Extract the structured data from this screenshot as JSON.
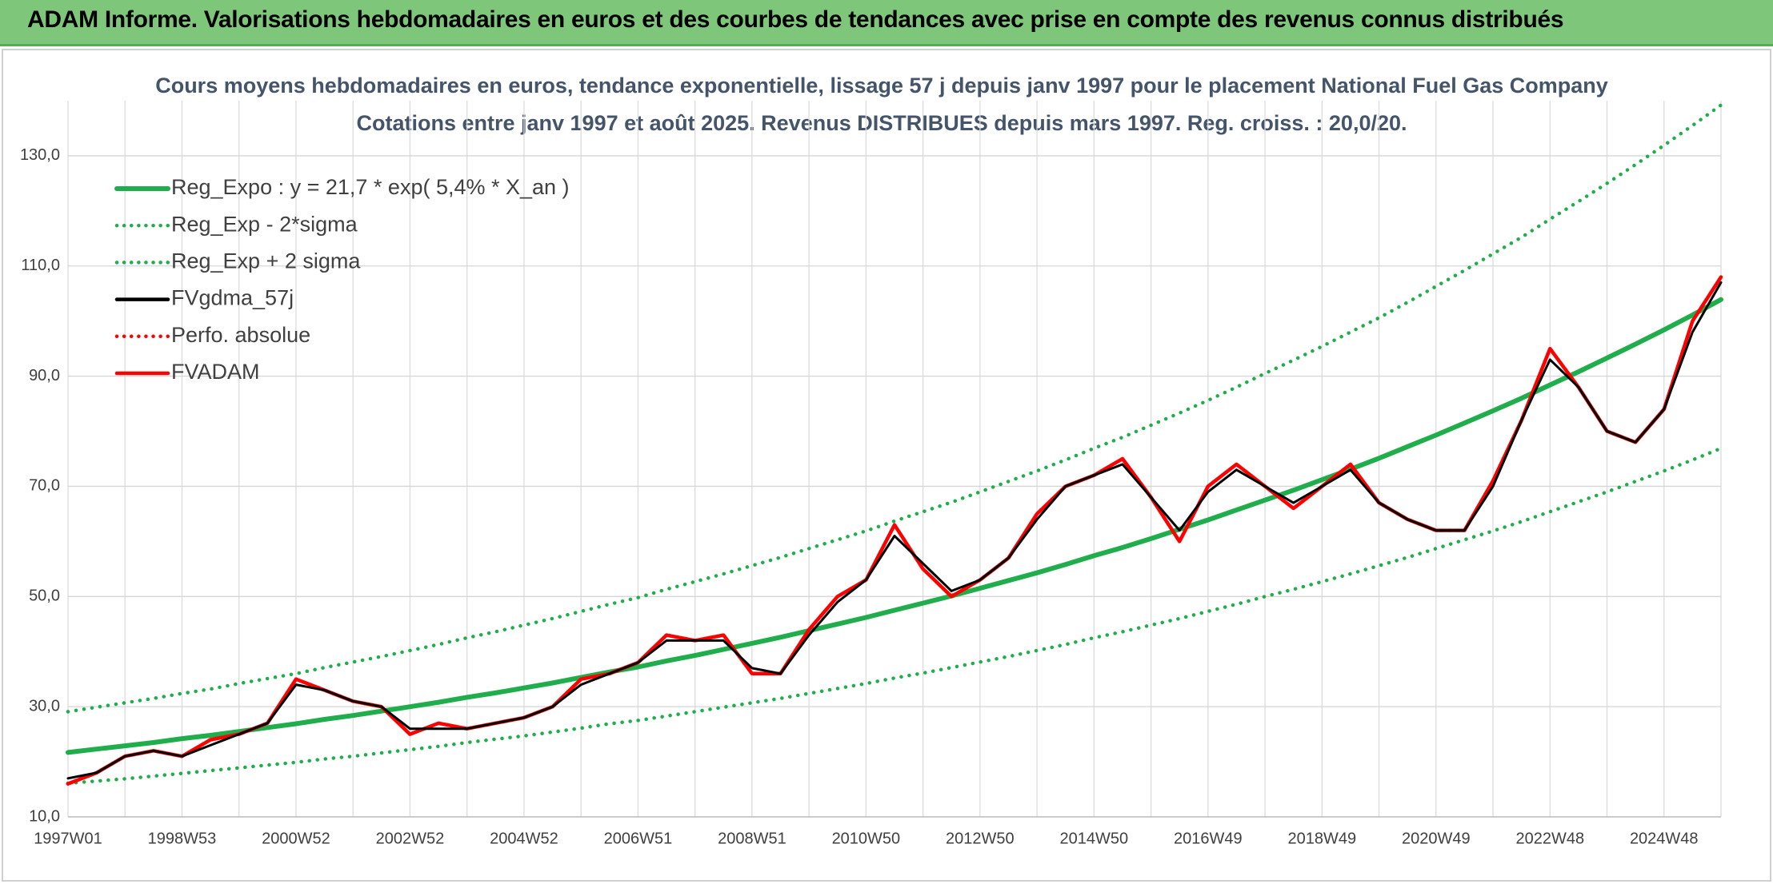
{
  "header": {
    "title": "ADAM Informe. Valorisations hebdomadaires en euros et des courbes de tendances avec prise en compte des revenus connus distribués"
  },
  "chart_data": {
    "type": "line",
    "title": "Cours moyens hebdomadaires en euros, tendance exponentielle, lissage 57 j depuis janv 1997 pour le placement National Fuel Gas Company",
    "subtitle": "Cotations entre janv 1997 et août 2025. Revenus DISTRIBUES depuis mars 1997. Reg. croiss. : 20,0/20.",
    "categories": [
      "1997W01",
      null,
      null,
      null,
      "1998W53",
      null,
      null,
      null,
      "2000W52",
      null,
      null,
      null,
      "2002W52",
      null,
      null,
      null,
      "2004W52",
      null,
      null,
      null,
      "2006W51",
      null,
      null,
      null,
      "2008W51",
      null,
      null,
      null,
      "2010W50",
      null,
      null,
      null,
      "2012W50",
      null,
      null,
      null,
      "2014W50",
      null,
      null,
      null,
      "2016W49",
      null,
      null,
      null,
      "2018W49",
      null,
      null,
      null,
      "2020W49",
      null,
      null,
      null,
      "2022W48",
      null,
      null,
      null,
      "2024W48",
      null,
      null
    ],
    "ylim": [
      10,
      140
    ],
    "yticks": [
      {
        "value": 10,
        "label": "10,0"
      },
      {
        "value": 30,
        "label": "30,0"
      },
      {
        "value": 50,
        "label": "50,0"
      },
      {
        "value": 70,
        "label": "70,0"
      },
      {
        "value": 90,
        "label": "90,0"
      },
      {
        "value": 110,
        "label": "110,0"
      },
      {
        "value": 130,
        "label": "130,0"
      }
    ],
    "grid": true,
    "legend": "top-left",
    "series": [
      {
        "name": "Reg_Expo : y = 21,7 * exp( 5,4% *  X_an )",
        "color": "#1fae4b",
        "dash": "solid",
        "values": [
          21.7,
          22.3,
          22.9,
          23.5,
          24.2,
          24.8,
          25.5,
          26.2,
          26.9,
          27.7,
          28.4,
          29.2,
          30.0,
          30.8,
          31.7,
          32.5,
          33.4,
          34.3,
          35.3,
          36.3,
          37.2,
          38.3,
          39.3,
          40.4,
          41.5,
          42.6,
          43.8,
          45.0,
          46.2,
          47.5,
          48.8,
          50.1,
          51.5,
          52.9,
          54.3,
          55.8,
          57.4,
          58.9,
          60.5,
          62.2,
          63.9,
          65.7,
          67.5,
          69.3,
          71.2,
          73.1,
          75.1,
          77.2,
          79.3,
          81.5,
          83.7,
          86.0,
          88.4,
          90.8,
          93.3,
          95.8,
          98.4,
          101.1,
          103.9
        ]
      },
      {
        "name": "Reg_Exp - 2*sigma",
        "color": "#1fae4b",
        "dash": "dotted",
        "values": [
          16.1,
          16.5,
          16.9,
          17.4,
          17.9,
          18.4,
          18.9,
          19.4,
          19.9,
          20.5,
          21.0,
          21.6,
          22.2,
          22.8,
          23.5,
          24.1,
          24.7,
          25.4,
          26.1,
          26.9,
          27.5,
          28.3,
          29.1,
          29.9,
          30.7,
          31.5,
          32.4,
          33.3,
          34.2,
          35.2,
          36.1,
          37.1,
          38.1,
          39.1,
          40.2,
          41.3,
          42.5,
          43.6,
          44.8,
          46.0,
          47.3,
          48.6,
          50.0,
          51.3,
          52.7,
          54.1,
          55.6,
          57.1,
          58.7,
          60.3,
          61.9,
          63.6,
          65.4,
          67.2,
          69.0,
          70.9,
          72.8,
          74.8,
          76.9
        ]
      },
      {
        "name": "Reg_Exp + 2 sigma",
        "color": "#1fae4b",
        "dash": "dotted",
        "values": [
          29.1,
          29.9,
          30.7,
          31.5,
          32.4,
          33.2,
          34.2,
          35.1,
          36.0,
          37.1,
          38.1,
          39.1,
          40.2,
          41.3,
          42.5,
          43.6,
          44.8,
          46.0,
          47.3,
          48.6,
          49.8,
          51.3,
          52.7,
          54.1,
          55.6,
          57.1,
          58.7,
          60.3,
          61.9,
          63.7,
          65.4,
          67.1,
          69.0,
          70.9,
          72.8,
          74.8,
          76.9,
          78.9,
          81.1,
          83.3,
          85.6,
          88.0,
          90.5,
          92.9,
          95.4,
          98.0,
          100.6,
          103.4,
          106.3,
          109.2,
          112.2,
          115.2,
          118.5,
          121.7,
          125.0,
          128.4,
          131.9,
          135.5,
          139.2
        ]
      },
      {
        "name": "FVgdma_57j",
        "color": "#000000",
        "dash": "solid",
        "values": [
          17,
          18,
          21,
          22,
          21,
          23,
          25,
          27,
          34,
          33,
          31,
          30,
          26,
          26,
          26,
          27,
          28,
          30,
          34,
          36,
          38,
          42,
          42,
          42,
          37,
          36,
          43,
          49,
          53,
          61,
          56,
          51,
          53,
          57,
          64,
          70,
          72,
          74,
          68,
          62,
          69,
          73,
          70,
          67,
          70,
          73,
          67,
          64,
          62,
          62,
          70,
          82,
          93,
          88,
          80,
          78,
          84,
          98,
          107
        ]
      },
      {
        "name": "Perfo. absolue",
        "color": "#ff0000",
        "dash": "dotted",
        "values": [
          16,
          18,
          21,
          22,
          21,
          24,
          25,
          27,
          35,
          33,
          31,
          30,
          25,
          27,
          26,
          27,
          28,
          30,
          35,
          36,
          38,
          43,
          42,
          43,
          36,
          36,
          44,
          50,
          53,
          63,
          55,
          50,
          53,
          57,
          65,
          70,
          72,
          75,
          68,
          60,
          70,
          74,
          70,
          66,
          70,
          74,
          67,
          64,
          62,
          62,
          71,
          82,
          95,
          88,
          80,
          78,
          84,
          100,
          108
        ]
      },
      {
        "name": "FVADAM",
        "color": "#ff0000",
        "dash": "solid",
        "values": [
          16,
          18,
          21,
          22,
          21,
          24,
          25,
          27,
          35,
          33,
          31,
          30,
          25,
          27,
          26,
          27,
          28,
          30,
          35,
          36,
          38,
          43,
          42,
          43,
          36,
          36,
          44,
          50,
          53,
          63,
          55,
          50,
          53,
          57,
          65,
          70,
          72,
          75,
          68,
          60,
          70,
          74,
          70,
          66,
          70,
          74,
          67,
          64,
          62,
          62,
          71,
          82,
          95,
          88,
          80,
          78,
          84,
          100,
          108
        ]
      }
    ]
  }
}
